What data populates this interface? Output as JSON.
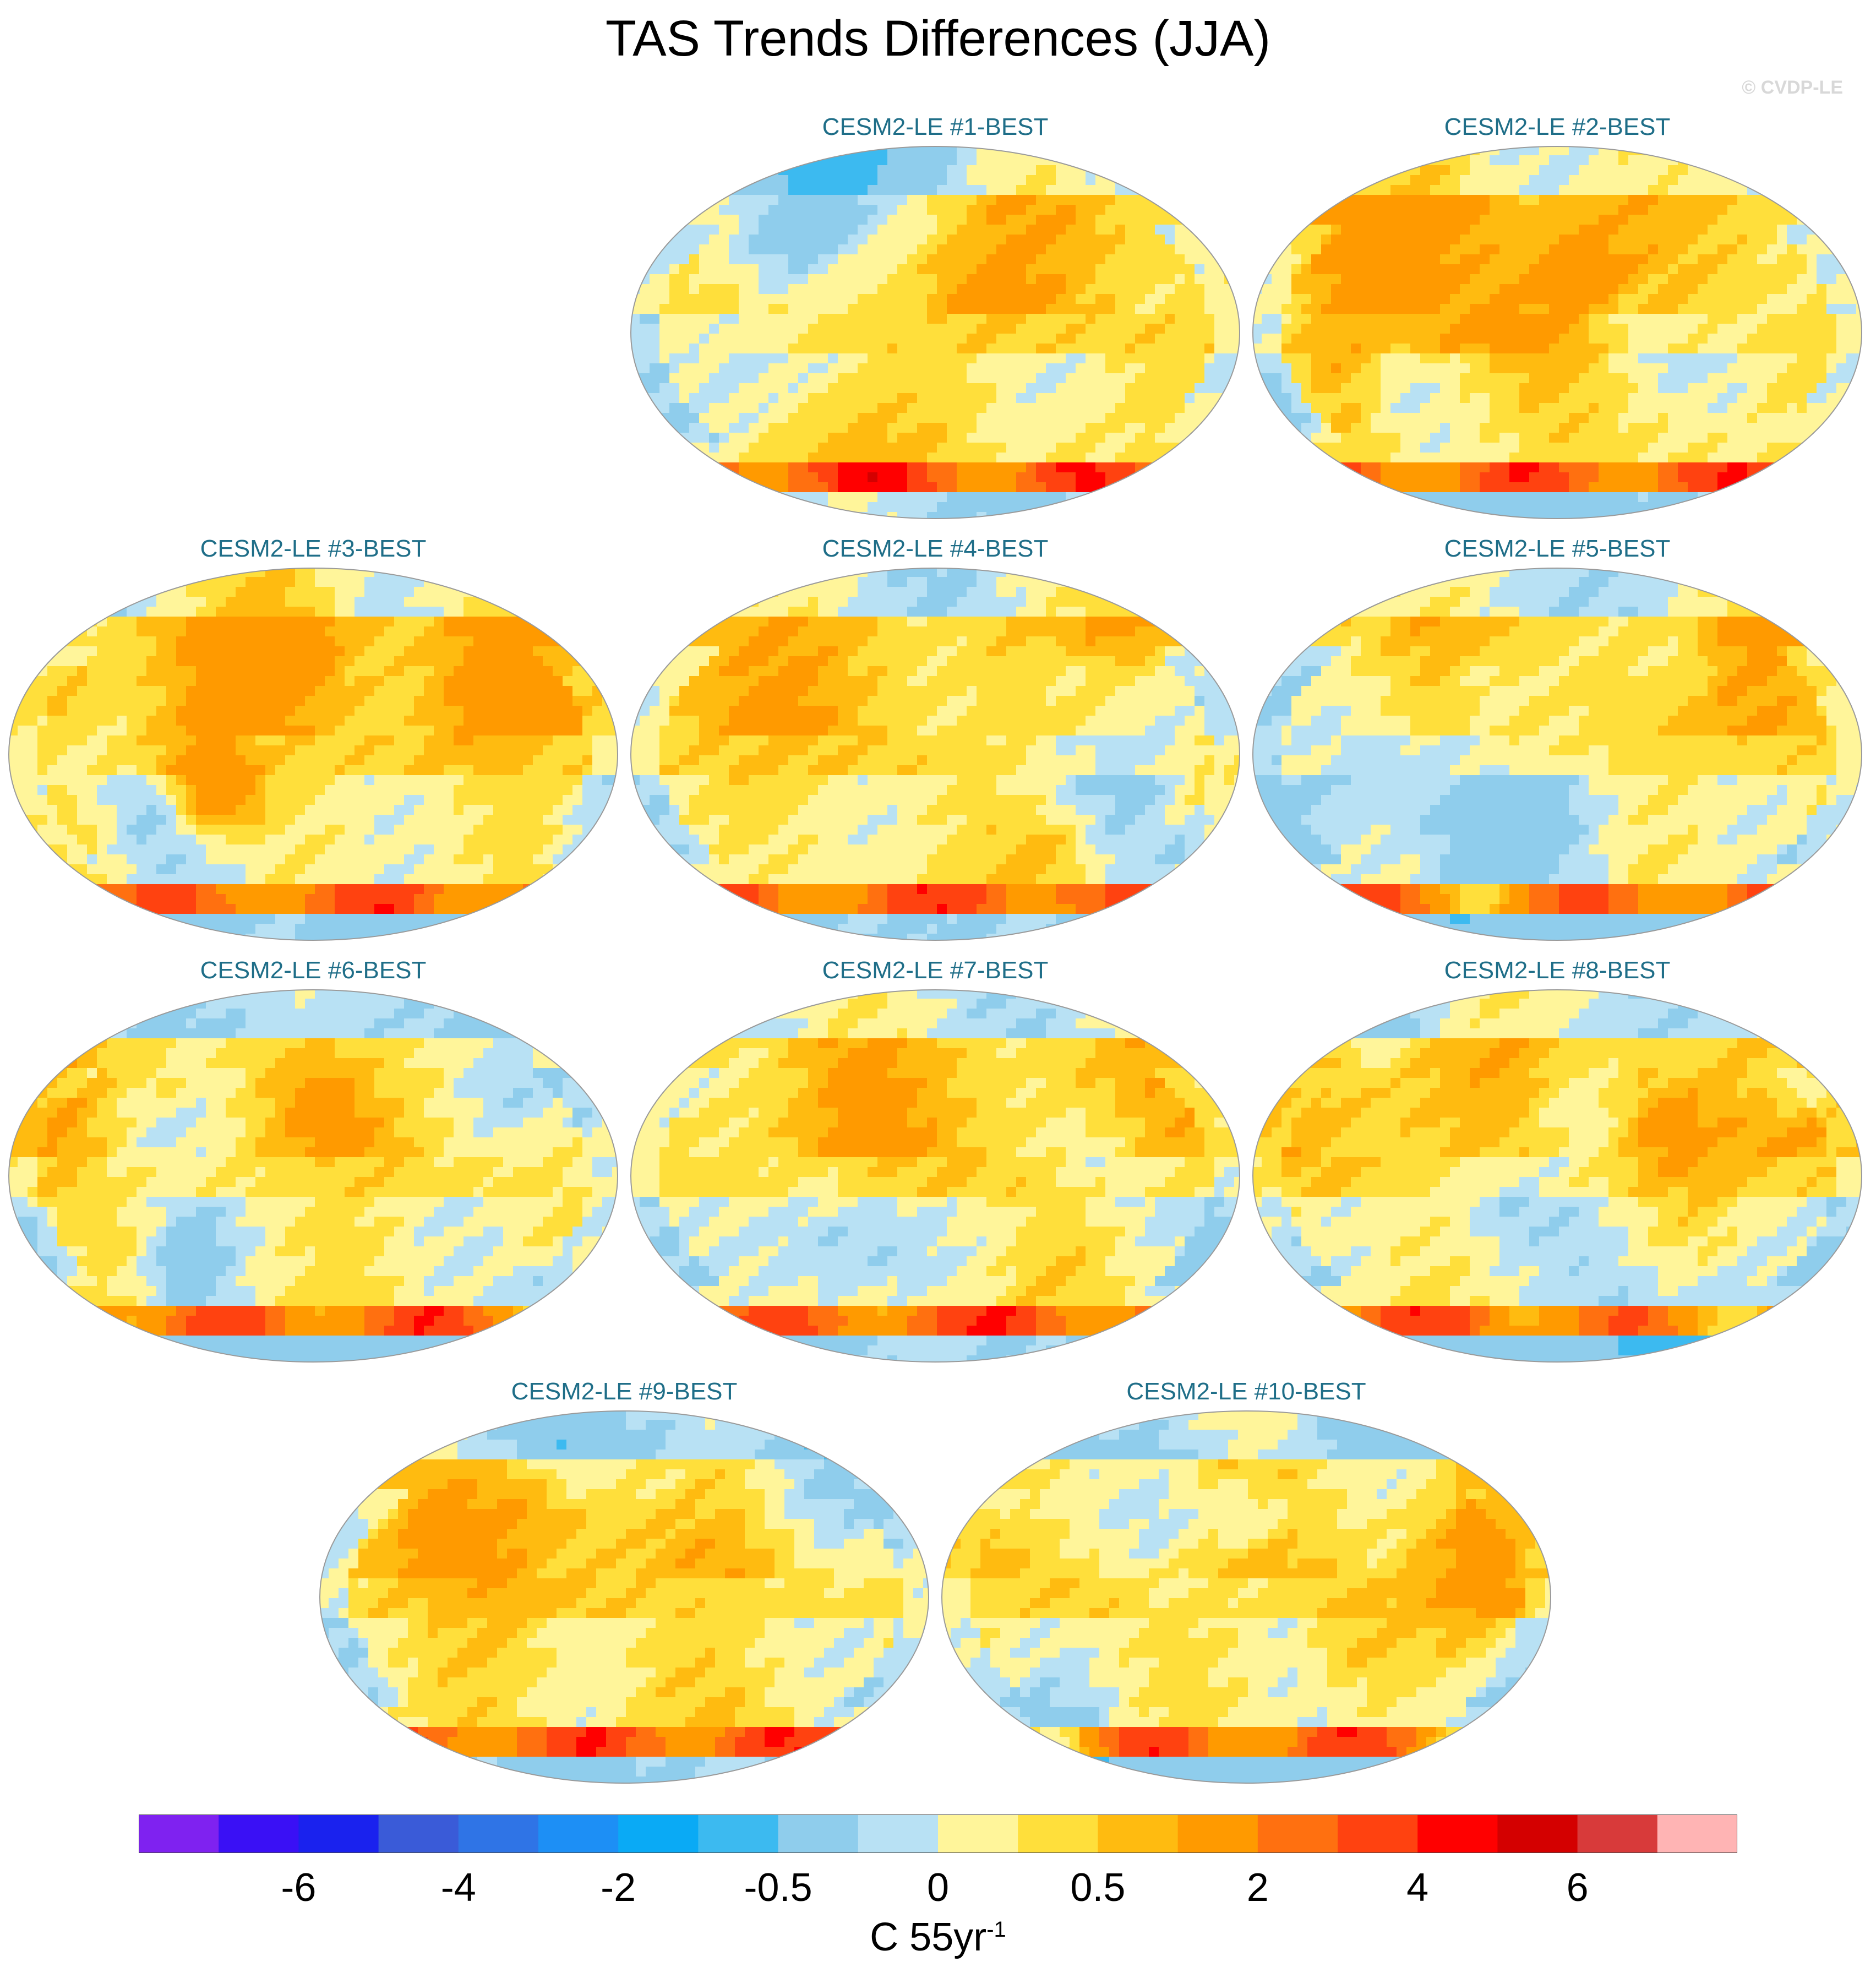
{
  "title": "TAS Trends Differences (JJA)",
  "credit": "© CVDP-LE",
  "panels": [
    {
      "label": "CESM2-LE #1-BEST",
      "seed": 11
    },
    {
      "label": "CESM2-LE #2-BEST",
      "seed": 23
    },
    {
      "label": "CESM2-LE #3-BEST",
      "seed": 37
    },
    {
      "label": "CESM2-LE #4-BEST",
      "seed": 41
    },
    {
      "label": "CESM2-LE #5-BEST",
      "seed": 53
    },
    {
      "label": "CESM2-LE #6-BEST",
      "seed": 67
    },
    {
      "label": "CESM2-LE #7-BEST",
      "seed": 71
    },
    {
      "label": "CESM2-LE #8-BEST",
      "seed": 83
    },
    {
      "label": "CESM2-LE #9-BEST",
      "seed": 97
    },
    {
      "label": "CESM2-LE #10-BEST",
      "seed": 101
    }
  ],
  "colorbar": {
    "colors": [
      "#7f22f0",
      "#3a10f5",
      "#1a22ee",
      "#3a5bd8",
      "#2f74e6",
      "#1d8ff5",
      "#0aaaf5",
      "#3cbaf0",
      "#8fcdec",
      "#b8e1f4",
      "#fff59a",
      "#ffdf3b",
      "#ffbb10",
      "#ff9a00",
      "#ff7010",
      "#ff4210",
      "#ff0000",
      "#d40000",
      "#d83a3a",
      "#ffb4b4"
    ],
    "tick_labels": [
      "-6",
      "-4",
      "-2",
      "-0.5",
      "0",
      "0.5",
      "2",
      "4",
      "6"
    ],
    "tick_boundaries": [
      2,
      4,
      6,
      8,
      10,
      12,
      14,
      16,
      18
    ],
    "units_base": "C 55yr",
    "units_exp": "-1"
  }
}
